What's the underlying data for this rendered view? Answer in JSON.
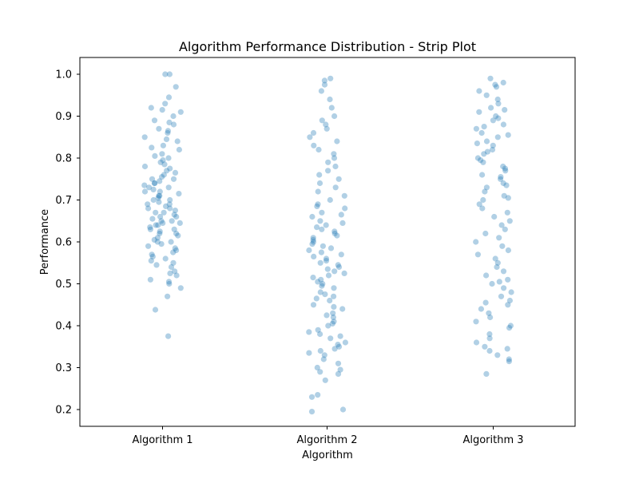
{
  "chart_data": {
    "type": "scatter",
    "subtype": "strip",
    "title": "Algorithm Performance Distribution - Strip Plot",
    "xlabel": "Algorithm",
    "ylabel": "Performance",
    "categories": [
      "Algorithm 1",
      "Algorithm 2",
      "Algorithm 3"
    ],
    "ylim": [
      0.16,
      1.04
    ],
    "yticks": [
      "0.2",
      "0.3",
      "0.4",
      "0.5",
      "0.6",
      "0.7",
      "0.8",
      "0.9",
      "1.0"
    ],
    "grid": false,
    "legend": "none",
    "point_color": "#1f77b4",
    "point_alpha": 0.35,
    "series": [
      {
        "category": "Algorithm 1",
        "values": [
          0.375,
          0.438,
          0.47,
          0.49,
          0.5,
          0.505,
          0.51,
          0.52,
          0.525,
          0.53,
          0.54,
          0.545,
          0.55,
          0.555,
          0.56,
          0.565,
          0.57,
          0.575,
          0.58,
          0.585,
          0.59,
          0.595,
          0.6,
          0.6,
          0.605,
          0.61,
          0.615,
          0.62,
          0.62,
          0.625,
          0.63,
          0.63,
          0.635,
          0.64,
          0.64,
          0.645,
          0.645,
          0.65,
          0.65,
          0.655,
          0.66,
          0.66,
          0.665,
          0.67,
          0.67,
          0.675,
          0.68,
          0.68,
          0.685,
          0.69,
          0.69,
          0.695,
          0.7,
          0.7,
          0.705,
          0.71,
          0.71,
          0.715,
          0.72,
          0.72,
          0.725,
          0.73,
          0.73,
          0.735,
          0.74,
          0.74,
          0.745,
          0.75,
          0.75,
          0.755,
          0.76,
          0.765,
          0.77,
          0.775,
          0.78,
          0.785,
          0.79,
          0.795,
          0.8,
          0.805,
          0.81,
          0.82,
          0.825,
          0.83,
          0.84,
          0.845,
          0.85,
          0.86,
          0.865,
          0.87,
          0.88,
          0.885,
          0.89,
          0.9,
          0.91,
          0.915,
          0.92,
          0.93,
          0.945,
          0.97,
          1.0,
          1.0
        ]
      },
      {
        "category": "Algorithm 2",
        "values": [
          0.195,
          0.2,
          0.23,
          0.235,
          0.27,
          0.285,
          0.29,
          0.295,
          0.3,
          0.31,
          0.32,
          0.33,
          0.335,
          0.34,
          0.345,
          0.35,
          0.355,
          0.36,
          0.37,
          0.375,
          0.38,
          0.385,
          0.39,
          0.4,
          0.405,
          0.41,
          0.42,
          0.425,
          0.43,
          0.44,
          0.445,
          0.45,
          0.46,
          0.465,
          0.47,
          0.475,
          0.48,
          0.49,
          0.495,
          0.5,
          0.505,
          0.51,
          0.515,
          0.52,
          0.525,
          0.53,
          0.535,
          0.54,
          0.545,
          0.55,
          0.555,
          0.56,
          0.565,
          0.57,
          0.575,
          0.58,
          0.585,
          0.59,
          0.595,
          0.6,
          0.605,
          0.61,
          0.615,
          0.62,
          0.625,
          0.63,
          0.635,
          0.64,
          0.645,
          0.65,
          0.66,
          0.665,
          0.67,
          0.68,
          0.685,
          0.69,
          0.7,
          0.71,
          0.72,
          0.73,
          0.74,
          0.75,
          0.76,
          0.77,
          0.78,
          0.79,
          0.8,
          0.81,
          0.82,
          0.83,
          0.84,
          0.85,
          0.86,
          0.87,
          0.88,
          0.89,
          0.9,
          0.92,
          0.94,
          0.96,
          0.975,
          0.985,
          0.99
        ]
      },
      {
        "category": "Algorithm 3",
        "values": [
          0.285,
          0.315,
          0.32,
          0.33,
          0.34,
          0.345,
          0.35,
          0.36,
          0.37,
          0.38,
          0.395,
          0.4,
          0.41,
          0.42,
          0.43,
          0.44,
          0.45,
          0.455,
          0.46,
          0.47,
          0.48,
          0.49,
          0.5,
          0.505,
          0.51,
          0.52,
          0.53,
          0.54,
          0.55,
          0.56,
          0.57,
          0.58,
          0.59,
          0.6,
          0.61,
          0.62,
          0.63,
          0.64,
          0.65,
          0.66,
          0.67,
          0.68,
          0.69,
          0.7,
          0.705,
          0.71,
          0.72,
          0.73,
          0.735,
          0.74,
          0.75,
          0.755,
          0.76,
          0.77,
          0.775,
          0.78,
          0.79,
          0.795,
          0.8,
          0.81,
          0.815,
          0.82,
          0.83,
          0.835,
          0.84,
          0.85,
          0.855,
          0.86,
          0.87,
          0.875,
          0.88,
          0.89,
          0.895,
          0.9,
          0.91,
          0.915,
          0.92,
          0.93,
          0.94,
          0.95,
          0.96,
          0.97,
          0.975,
          0.98,
          0.99
        ]
      }
    ]
  }
}
